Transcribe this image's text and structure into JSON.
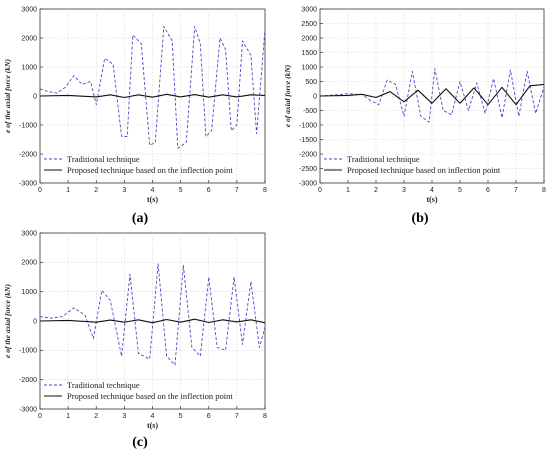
{
  "chart_data": [
    {
      "panel_label": "(a)",
      "type": "line",
      "ylabel": "e of the axial force (kN)",
      "xlabel": "t(s)",
      "xlim": [
        0,
        8
      ],
      "ylim": [
        -3000,
        3000
      ],
      "xticks": [
        "0",
        "1",
        "2",
        "3",
        "4",
        "5",
        "6",
        "7",
        "8"
      ],
      "yticks": [
        "3000",
        "2000",
        "1000",
        "0",
        "-1000",
        "-2000",
        "-3000"
      ],
      "grid": true,
      "legend_position": "bottom-left",
      "series": [
        {
          "name": "Traditional technique",
          "color": "#4a4ac8",
          "style": "dashed",
          "x": [
            0,
            0.3,
            0.6,
            0.9,
            1.2,
            1.5,
            1.8,
            2.0,
            2.3,
            2.6,
            2.9,
            3.1,
            3.3,
            3.6,
            3.9,
            4.1,
            4.4,
            4.7,
            4.9,
            5.2,
            5.5,
            5.7,
            5.9,
            6.1,
            6.4,
            6.6,
            6.8,
            7.0,
            7.2,
            7.5,
            7.7,
            8.0
          ],
          "y": [
            250,
            150,
            100,
            300,
            700,
            400,
            500,
            -300,
            1300,
            1100,
            -1400,
            -1400,
            2100,
            1800,
            -1700,
            -1600,
            2400,
            1900,
            -1800,
            -1600,
            2400,
            1800,
            -1400,
            -1200,
            2000,
            1600,
            -1200,
            -1000,
            1900,
            1400,
            -1300,
            2300
          ]
        },
        {
          "name": "Proposed technique based on the inflection point",
          "color": "#111111",
          "style": "solid",
          "x": [
            0,
            1,
            2,
            2.5,
            3,
            3.5,
            4,
            4.5,
            5,
            5.5,
            6,
            6.5,
            7,
            7.5,
            8
          ],
          "y": [
            0,
            20,
            -30,
            40,
            -50,
            40,
            -40,
            60,
            -30,
            50,
            -40,
            40,
            -30,
            40,
            20
          ]
        }
      ]
    },
    {
      "panel_label": "(b)",
      "type": "line",
      "ylabel": "e of axial force (kN)",
      "xlabel": "t(s)",
      "xlim": [
        0,
        8
      ],
      "ylim": [
        -3000,
        3000
      ],
      "xticks": [
        "0",
        "1",
        "2",
        "3",
        "4",
        "5",
        "6",
        "7",
        "8"
      ],
      "yticks": [
        "3000",
        "2500",
        "2000",
        "1500",
        "1000",
        "500",
        "0",
        "-500",
        "-1000",
        "-1500",
        "-2000",
        "-2500",
        "-3000"
      ],
      "grid": true,
      "legend_position": "bottom-left",
      "series": [
        {
          "name": "Traditional technique",
          "color": "#4a4ac8",
          "style": "dashed",
          "x": [
            0,
            0.5,
            1,
            1.5,
            1.8,
            2.1,
            2.4,
            2.7,
            3.0,
            3.3,
            3.6,
            3.9,
            4.1,
            4.4,
            4.7,
            5.0,
            5.3,
            5.6,
            5.9,
            6.2,
            6.5,
            6.8,
            7.1,
            7.4,
            7.7,
            8.0
          ],
          "y": [
            0,
            30,
            80,
            50,
            -150,
            -300,
            550,
            400,
            -700,
            850,
            -700,
            -900,
            950,
            -500,
            -650,
            500,
            -500,
            450,
            -600,
            600,
            -750,
            900,
            -700,
            850,
            -600,
            300
          ]
        },
        {
          "name": "Proposed technique based on inflection point",
          "color": "#111111",
          "style": "solid",
          "x": [
            0,
            1,
            1.5,
            2,
            2.5,
            3,
            3.5,
            4,
            4.5,
            5,
            5.5,
            6,
            6.5,
            7,
            7.5,
            8
          ],
          "y": [
            0,
            20,
            60,
            -50,
            150,
            -200,
            200,
            -250,
            250,
            -250,
            280,
            -300,
            300,
            -300,
            350,
            400
          ]
        }
      ]
    },
    {
      "panel_label": "(c)",
      "type": "line",
      "ylabel": "e of the axial force (kN)",
      "xlabel": "t(s)",
      "xlim": [
        0,
        8
      ],
      "ylim": [
        -3000,
        3000
      ],
      "xticks": [
        "0",
        "1",
        "2",
        "3",
        "4",
        "5",
        "6",
        "7",
        "8"
      ],
      "yticks": [
        "3000",
        "2000",
        "1000",
        "0",
        "-1000",
        "-2000",
        "-3000"
      ],
      "grid": true,
      "legend_position": "bottom-left",
      "series": [
        {
          "name": "Traditional technique",
          "color": "#4a4ac8",
          "style": "dashed",
          "x": [
            0,
            0.4,
            0.8,
            1.2,
            1.6,
            1.9,
            2.2,
            2.5,
            2.9,
            3.2,
            3.5,
            3.9,
            4.2,
            4.5,
            4.8,
            5.1,
            5.4,
            5.7,
            6.0,
            6.3,
            6.6,
            6.9,
            7.2,
            7.5,
            7.8,
            8.0
          ],
          "y": [
            150,
            100,
            150,
            450,
            200,
            -600,
            1050,
            700,
            -1200,
            1600,
            -1100,
            -1300,
            1950,
            -1200,
            -1500,
            1900,
            -900,
            -1200,
            1500,
            -900,
            -1000,
            1500,
            -800,
            1350,
            -900,
            -200
          ]
        },
        {
          "name": "Proposed technique based on the inflection point",
          "color": "#111111",
          "style": "solid",
          "x": [
            0,
            1,
            2,
            2.5,
            3,
            3.5,
            4,
            4.5,
            5,
            5.5,
            6,
            6.5,
            7,
            7.5,
            8
          ],
          "y": [
            0,
            20,
            -40,
            30,
            -40,
            40,
            -60,
            50,
            -40,
            60,
            -50,
            40,
            -30,
            40,
            -60
          ]
        }
      ]
    }
  ]
}
